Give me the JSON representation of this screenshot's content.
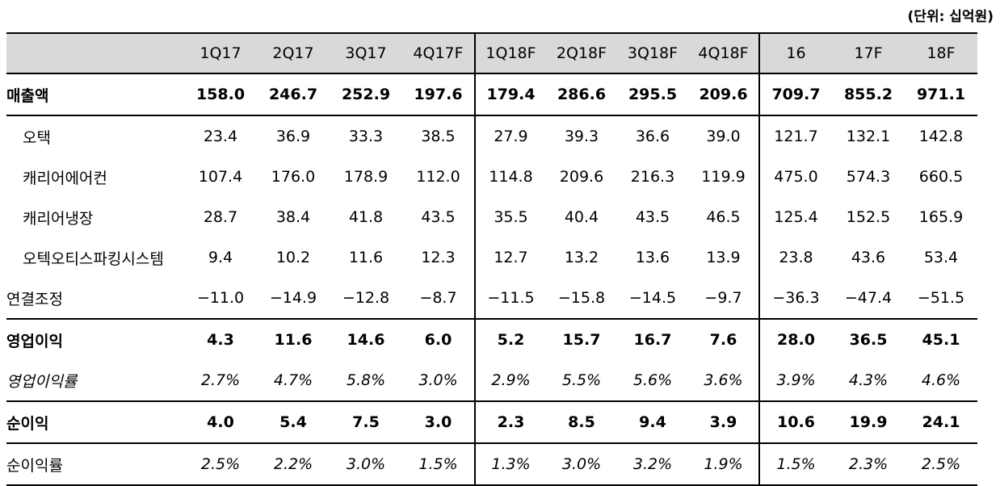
{
  "unit_label": "(단위: 십억원)",
  "columns": [
    "1Q17",
    "2Q17",
    "3Q17",
    "4Q17F",
    "1Q18F",
    "2Q18F",
    "3Q18F",
    "4Q18F",
    "16",
    "17F",
    "18F"
  ],
  "rows": [
    {
      "label": "매출액",
      "values": [
        "158.0",
        "246.7",
        "252.9",
        "197.6",
        "179.4",
        "286.6",
        "295.5",
        "209.6",
        "709.7",
        "855.2",
        "971.1"
      ]
    },
    {
      "label": "오택",
      "values": [
        "23.4",
        "36.9",
        "33.3",
        "38.5",
        "27.9",
        "39.3",
        "36.6",
        "39.0",
        "121.7",
        "132.1",
        "142.8"
      ]
    },
    {
      "label": "캐리어에어컨",
      "values": [
        "107.4",
        "176.0",
        "178.9",
        "112.0",
        "114.8",
        "209.6",
        "216.3",
        "119.9",
        "475.0",
        "574.3",
        "660.5"
      ]
    },
    {
      "label": "캐리어냉장",
      "values": [
        "28.7",
        "38.4",
        "41.8",
        "43.5",
        "35.5",
        "40.4",
        "43.5",
        "46.5",
        "125.4",
        "152.5",
        "165.9"
      ]
    },
    {
      "label": "오텍오티스파킹시스템",
      "values": [
        "9.4",
        "10.2",
        "11.6",
        "12.3",
        "12.7",
        "13.2",
        "13.6",
        "13.9",
        "23.8",
        "43.6",
        "53.4"
      ]
    },
    {
      "label": "연결조정",
      "values": [
        "−11.0",
        "−14.9",
        "−12.8",
        "−8.7",
        "−11.5",
        "−15.8",
        "−14.5",
        "−9.7",
        "−36.3",
        "−47.4",
        "−51.5"
      ]
    },
    {
      "label": "영업이익",
      "values": [
        "4.3",
        "11.6",
        "14.6",
        "6.0",
        "5.2",
        "15.7",
        "16.7",
        "7.6",
        "28.0",
        "36.5",
        "45.1"
      ]
    },
    {
      "label": "영업이익률",
      "values": [
        "2.7%",
        "4.7%",
        "5.8%",
        "3.0%",
        "2.9%",
        "5.5%",
        "5.6%",
        "3.6%",
        "3.9%",
        "4.3%",
        "4.6%"
      ]
    },
    {
      "label": "순이익",
      "values": [
        "4.0",
        "5.4",
        "7.5",
        "3.0",
        "2.3",
        "8.5",
        "9.4",
        "3.9",
        "10.6",
        "19.9",
        "24.1"
      ]
    },
    {
      "label": "순이익률",
      "values": [
        "2.5%",
        "2.2%",
        "3.0%",
        "1.5%",
        "1.3%",
        "3.0%",
        "3.2%",
        "1.9%",
        "1.5%",
        "2.3%",
        "2.5%"
      ]
    }
  ]
}
